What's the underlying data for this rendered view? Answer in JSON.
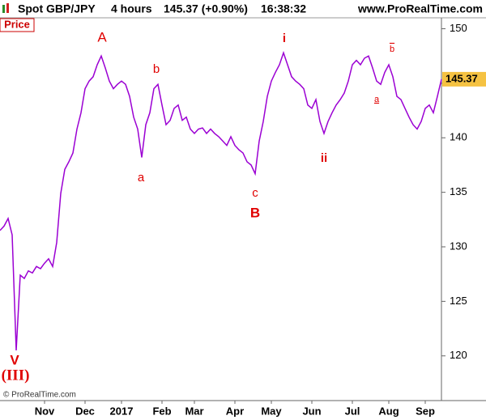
{
  "header": {
    "symbol": "Spot GBP/JPY",
    "period": "4 hours",
    "quote": "145.37 (+0.90%)",
    "time": "16:38:32",
    "site": "www.ProRealTime.com"
  },
  "chart_data": {
    "type": "line",
    "panel_label": "Price",
    "copyright": "© ProRealTime.com",
    "last_price": 145.37,
    "color": "#9b00d3",
    "series": [
      {
        "name": "Spot GBP/JPY",
        "color": "#9b00d3",
        "values": [
          131.5,
          131.9,
          132.6,
          131.1,
          120.5,
          127.4,
          127.1,
          127.8,
          127.6,
          128.2,
          128,
          128.5,
          128.9,
          128.2,
          130.4,
          134.9,
          137.1,
          137.8,
          138.6,
          140.8,
          142.3,
          144.5,
          145.2,
          145.6,
          146.7,
          147.5,
          146.4,
          145.2,
          144.5,
          144.9,
          145.2,
          144.9,
          143.8,
          141.9,
          140.8,
          138.2,
          141.2,
          142.3,
          144.5,
          144.9,
          143,
          141.2,
          141.6,
          142.7,
          143,
          141.6,
          141.9,
          140.8,
          140.4,
          140.8,
          140.9,
          140.4,
          140.8,
          140.4,
          140.1,
          139.7,
          139.3,
          140.1,
          139.3,
          138.9,
          138.6,
          137.8,
          137.5,
          136.7,
          139.7,
          141.5,
          143.8,
          145.2,
          146,
          146.7,
          147.8,
          146.7,
          145.6,
          145.2,
          144.9,
          144.5,
          143,
          142.7,
          143.5,
          141.5,
          140.4,
          141.5,
          142.3,
          143,
          143.5,
          144.1,
          145.2,
          146.7,
          147.1,
          146.7,
          147.3,
          147.5,
          146.4,
          145.2,
          144.9,
          146,
          146.7,
          145.6,
          143.8,
          143.5,
          142.7,
          141.9,
          141.2,
          140.8,
          141.5,
          142.7,
          143,
          142.3,
          143.8,
          145.37
        ]
      }
    ],
    "xlim": [
      0,
      109
    ],
    "xticks": [
      {
        "value": 11,
        "label": "Nov"
      },
      {
        "value": 21,
        "label": "Dec"
      },
      {
        "value": 30,
        "label": "2017"
      },
      {
        "value": 40,
        "label": "Feb"
      },
      {
        "value": 48,
        "label": "Mar"
      },
      {
        "value": 58,
        "label": "Apr"
      },
      {
        "value": 67,
        "label": "May"
      },
      {
        "value": 77,
        "label": "Jun"
      },
      {
        "value": 87,
        "label": "Jul"
      },
      {
        "value": 96,
        "label": "Aug"
      },
      {
        "value": 105,
        "label": "Sep"
      }
    ],
    "ylim": [
      115.9,
      151.3
    ],
    "yticks": [
      120,
      125,
      130,
      135,
      140,
      145,
      150
    ],
    "annotations": [
      "A",
      "b",
      "a",
      "i",
      "b",
      "a",
      "ii",
      "c",
      "B",
      "V",
      "(III)"
    ]
  }
}
